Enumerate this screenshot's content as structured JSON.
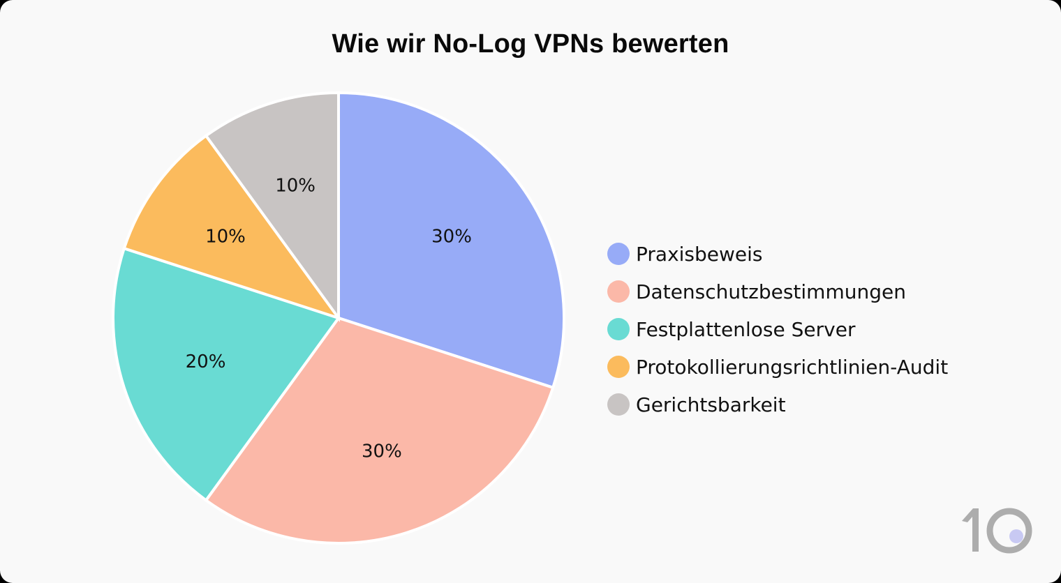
{
  "title": "Wie wir No-Log VPNs bewerten",
  "chart_data": {
    "type": "pie",
    "title": "Wie wir No-Log VPNs bewerten",
    "categories": [
      "Praxisbeweis",
      "Datenschutzbestimmungen",
      "Festplattenlose Server",
      "Protokollierungsrichtlinien-Audit",
      "Gerichtsbarkeit"
    ],
    "values": [
      30,
      30,
      20,
      10,
      10
    ],
    "labels": [
      "30%",
      "30%",
      "20%",
      "10%",
      "10%"
    ],
    "colors": [
      "#97abf7",
      "#fbb8a8",
      "#69dbd3",
      "#fbbb5d",
      "#c8c4c3"
    ],
    "start_angle": "12 o'clock, clockwise",
    "legend_position": "right"
  },
  "legend": [
    {
      "label": "Praxisbeweis",
      "color": "#97abf7"
    },
    {
      "label": "Datenschutzbestimmungen",
      "color": "#fbb8a8"
    },
    {
      "label": "Festplattenlose Server",
      "color": "#69dbd3"
    },
    {
      "label": "Protokollierungsrichtlinien-Audit",
      "color": "#fbbb5d"
    },
    {
      "label": "Gerichtsbarkeit",
      "color": "#c8c4c3"
    }
  ],
  "logo": {
    "text": "10",
    "icon": "logo-10-icon"
  }
}
